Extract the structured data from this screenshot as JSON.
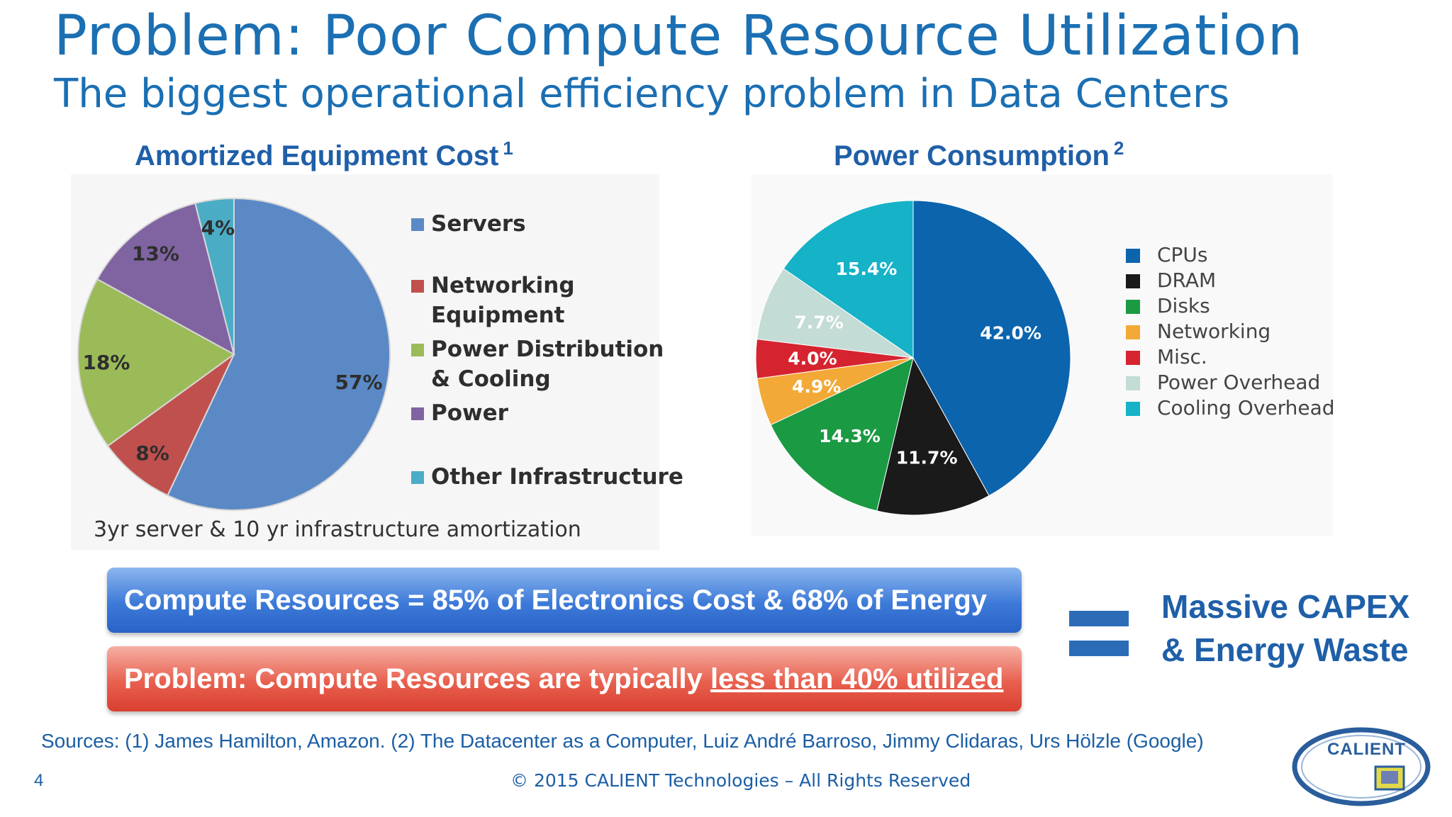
{
  "slide": {
    "title": "Problem: Poor Compute Resource Utilization",
    "subtitle": "The biggest operational efficiency problem in Data Centers",
    "amortization_note": "3yr server & 10 yr infrastructure amortization",
    "blue_bar": "Compute Resources = 85% of Electronics Cost & 68% of Energy",
    "red_bar_prefix": "Problem: Compute Resources are typically ",
    "red_bar_underlined": "less than 40% utilized",
    "conclusion_line1": "Massive CAPEX",
    "conclusion_line2": "& Energy Waste",
    "sources": "Sources: (1) James Hamilton, Amazon. (2) The Datacenter as a Computer, Luiz André Barroso, Jimmy Clidaras, Urs Hölzle (Google)",
    "page_number": "4",
    "copyright": "© 2015 CALIENT Technologies – All Rights Reserved",
    "logo_text": "CALIENT"
  },
  "colors": {
    "accent": "#1b6fb3",
    "blue_bar": "#3d7ad8",
    "red_bar": "#e8604f"
  },
  "chart_data": [
    {
      "type": "pie",
      "title": "Amortized Equipment Cost",
      "footnote": "1",
      "slices": [
        {
          "label": "Servers",
          "legend_lines": [
            "Servers"
          ],
          "value": 57,
          "display": "57%",
          "color": "#5b89c6"
        },
        {
          "label": "Networking Equipment",
          "legend_lines": [
            "Networking",
            "Equipment"
          ],
          "value": 8,
          "display": "8%",
          "color": "#c0504d"
        },
        {
          "label": "Power Distribution & Cooling",
          "legend_lines": [
            "Power Distribution",
            "& Cooling"
          ],
          "value": 18,
          "display": "18%",
          "color": "#9bbb59"
        },
        {
          "label": "Power",
          "legend_lines": [
            "Power"
          ],
          "value": 13,
          "display": "13%",
          "color": "#8064a2"
        },
        {
          "label": "Other Infrastructure",
          "legend_lines": [
            "Other Infrastructure"
          ],
          "value": 4,
          "display": "4%",
          "color": "#4bacc6"
        }
      ]
    },
    {
      "type": "pie",
      "title": "Power Consumption",
      "footnote": "2",
      "slices": [
        {
          "label": "CPUs",
          "value": 42.0,
          "display": "42.0%",
          "color": "#0c64ad"
        },
        {
          "label": "DRAM",
          "value": 11.7,
          "display": "11.7%",
          "color": "#1a1a1a"
        },
        {
          "label": "Disks",
          "value": 14.3,
          "display": "14.3%",
          "color": "#1b9a44"
        },
        {
          "label": "Networking",
          "value": 4.9,
          "display": "4.9%",
          "color": "#f3a937"
        },
        {
          "label": "Misc.",
          "value": 4.0,
          "display": "4.0%",
          "color": "#d52430"
        },
        {
          "label": "Power Overhead",
          "value": 7.7,
          "display": "7.7%",
          "color": "#c3dcd5"
        },
        {
          "label": "Cooling Overhead",
          "value": 15.4,
          "display": "15.4%",
          "color": "#15b2c8"
        }
      ]
    }
  ]
}
